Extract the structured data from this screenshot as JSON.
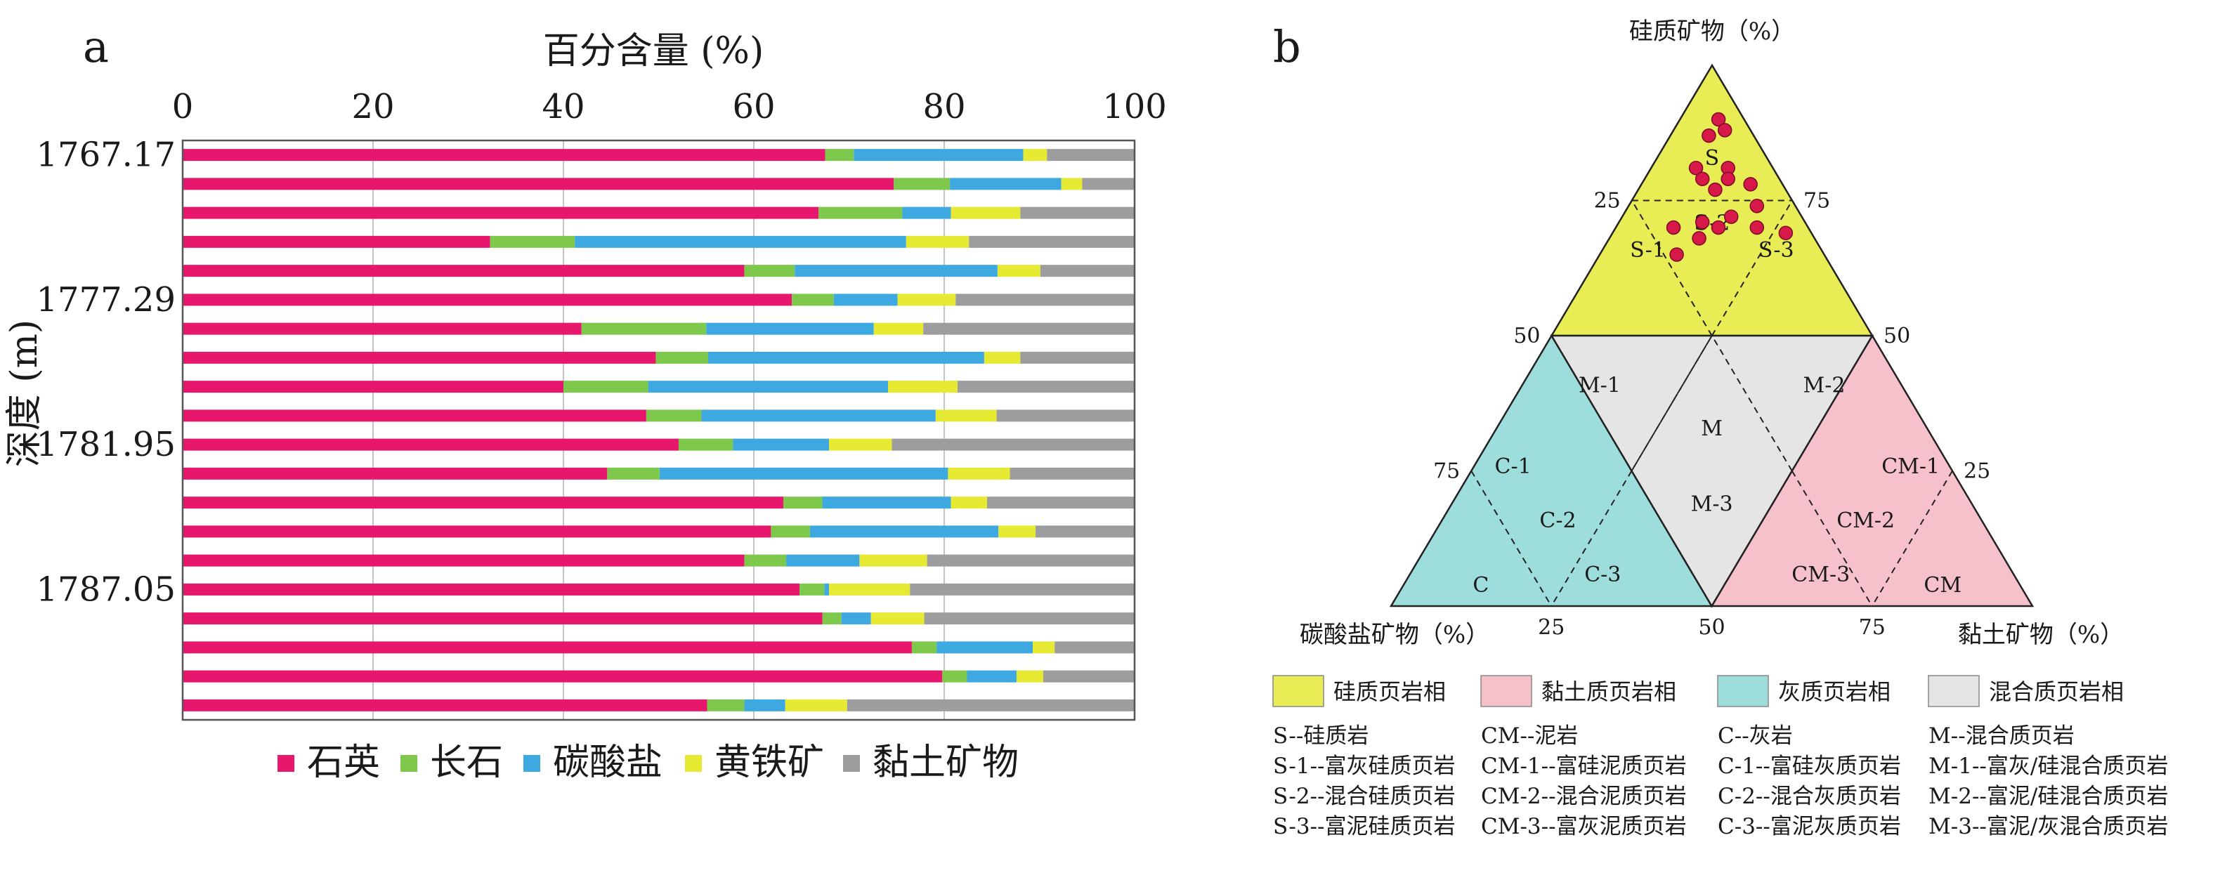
{
  "chart_data": [
    {
      "type": "bar",
      "orientation": "horizontal",
      "stacked": true,
      "panel_label": "a",
      "xlabel": "百分含量 (%)",
      "ylabel": "深度 (m)",
      "xlim": [
        0,
        100
      ],
      "x_ticks": [
        "0",
        "20",
        "40",
        "60",
        "80",
        "100"
      ],
      "y_tick_labels": [
        "1767.17",
        "1777.29",
        "1781.95",
        "1787.05"
      ],
      "y_tick_rows": [
        0,
        5,
        10,
        15
      ],
      "grid": "vertical",
      "legend": "bottom",
      "series": [
        {
          "name": "石英",
          "color": "#e8176e",
          "values": [
            67.5,
            74.7,
            66.8,
            32.3,
            59.0,
            64.0,
            41.9,
            49.7,
            40.0,
            48.7,
            52.1,
            44.6,
            63.1,
            61.8,
            59.0,
            64.8,
            67.2,
            76.6,
            79.8,
            55.1
          ]
        },
        {
          "name": "长石",
          "color": "#7ec84c",
          "values": [
            3.0,
            5.9,
            8.8,
            8.9,
            5.3,
            4.4,
            13.1,
            5.5,
            8.9,
            5.8,
            5.7,
            5.5,
            4.1,
            4.1,
            4.4,
            2.6,
            2.0,
            2.6,
            2.6,
            3.9
          ]
        },
        {
          "name": "碳酸盐",
          "color": "#3ea9e1",
          "values": [
            17.8,
            11.7,
            5.1,
            34.8,
            21.3,
            6.7,
            17.6,
            29.0,
            25.2,
            24.6,
            10.1,
            30.3,
            13.5,
            19.8,
            7.7,
            0.5,
            3.1,
            10.1,
            5.2,
            4.3
          ]
        },
        {
          "name": "黄铁矿",
          "color": "#e7ea33",
          "values": [
            2.5,
            2.2,
            7.3,
            6.6,
            4.5,
            6.1,
            5.2,
            3.8,
            7.3,
            6.4,
            6.6,
            6.5,
            3.8,
            3.9,
            7.1,
            8.5,
            5.6,
            2.3,
            2.8,
            6.5
          ]
        },
        {
          "name": "黏土矿物",
          "color": "#9d9d9f",
          "values": [
            9.2,
            5.5,
            12.0,
            17.4,
            9.9,
            18.8,
            22.2,
            12.0,
            18.6,
            14.5,
            25.5,
            13.1,
            15.5,
            10.4,
            21.8,
            23.6,
            22.1,
            8.4,
            9.6,
            30.2
          ]
        }
      ]
    },
    {
      "type": "scatter",
      "subtype": "ternary",
      "panel_label": "b",
      "axes": {
        "top": "硅质矿物（%）",
        "left": "碳酸盐矿物（%）",
        "right": "黏土矿物（%）"
      },
      "tick_labels": {
        "left_edge": [
          "25",
          "50",
          "75"
        ],
        "right_edge": [
          "75",
          "50",
          "25"
        ],
        "bottom_edge": [
          "25",
          "50",
          "75"
        ]
      },
      "fields": [
        "S",
        "S-1",
        "S-2",
        "S-3",
        "M-1",
        "M",
        "M-2",
        "M-3",
        "C-1",
        "C-2",
        "C-3",
        "C",
        "CM-1",
        "CM-2",
        "CM-3",
        "CM"
      ],
      "point_color": "#d7194a",
      "points": [
        {
          "siliceous": 87,
          "carbonate": 7,
          "clay": 6
        },
        {
          "siliceous": 90,
          "carbonate": 4,
          "clay": 6
        },
        {
          "siliceous": 88,
          "carbonate": 4,
          "clay": 8
        },
        {
          "siliceous": 81,
          "carbonate": 12,
          "clay": 7
        },
        {
          "siliceous": 79,
          "carbonate": 12,
          "clay": 9
        },
        {
          "siliceous": 81,
          "carbonate": 7,
          "clay": 12
        },
        {
          "siliceous": 79,
          "carbonate": 8,
          "clay": 13
        },
        {
          "siliceous": 78,
          "carbonate": 5,
          "clay": 17
        },
        {
          "siliceous": 77,
          "carbonate": 11,
          "clay": 12
        },
        {
          "siliceous": 74,
          "carbonate": 6,
          "clay": 20
        },
        {
          "siliceous": 72,
          "carbonate": 11,
          "clay": 17
        },
        {
          "siliceous": 71,
          "carbonate": 16,
          "clay": 13
        },
        {
          "siliceous": 70,
          "carbonate": 21,
          "clay": 9
        },
        {
          "siliceous": 70,
          "carbonate": 14,
          "clay": 16
        },
        {
          "siliceous": 70,
          "carbonate": 8,
          "clay": 22
        },
        {
          "siliceous": 69,
          "carbonate": 4,
          "clay": 27
        },
        {
          "siliceous": 68,
          "carbonate": 18,
          "clay": 14
        },
        {
          "siliceous": 65,
          "carbonate": 23,
          "clay": 12
        }
      ],
      "legend": {
        "swatches": [
          {
            "label": "硅质页岩相",
            "color": "#e8ed55"
          },
          {
            "label": "黏土质页岩相",
            "color": "#f7c1cb"
          },
          {
            "label": "灰质页岩相",
            "color": "#9ddddb"
          },
          {
            "label": "混合质页岩相",
            "color": "#e5e5e5"
          }
        ],
        "abbreviations": [
          [
            "S--硅质岩",
            "CM--泥岩",
            "C--灰岩",
            "M--混合质页岩"
          ],
          [
            "S-1--富灰硅质页岩",
            "CM-1--富硅泥质页岩",
            "C-1--富硅灰质页岩",
            "M-1--富灰/硅混合质页岩"
          ],
          [
            "S-2--混合硅质页岩",
            "CM-2--混合泥质页岩",
            "C-2--混合灰质页岩",
            "M-2--富泥/硅混合质页岩"
          ],
          [
            "S-3--富泥硅质页岩",
            "CM-3--富灰泥质页岩",
            "C-3--富泥灰质页岩",
            "M-3--富泥/灰混合质页岩"
          ]
        ]
      }
    }
  ]
}
